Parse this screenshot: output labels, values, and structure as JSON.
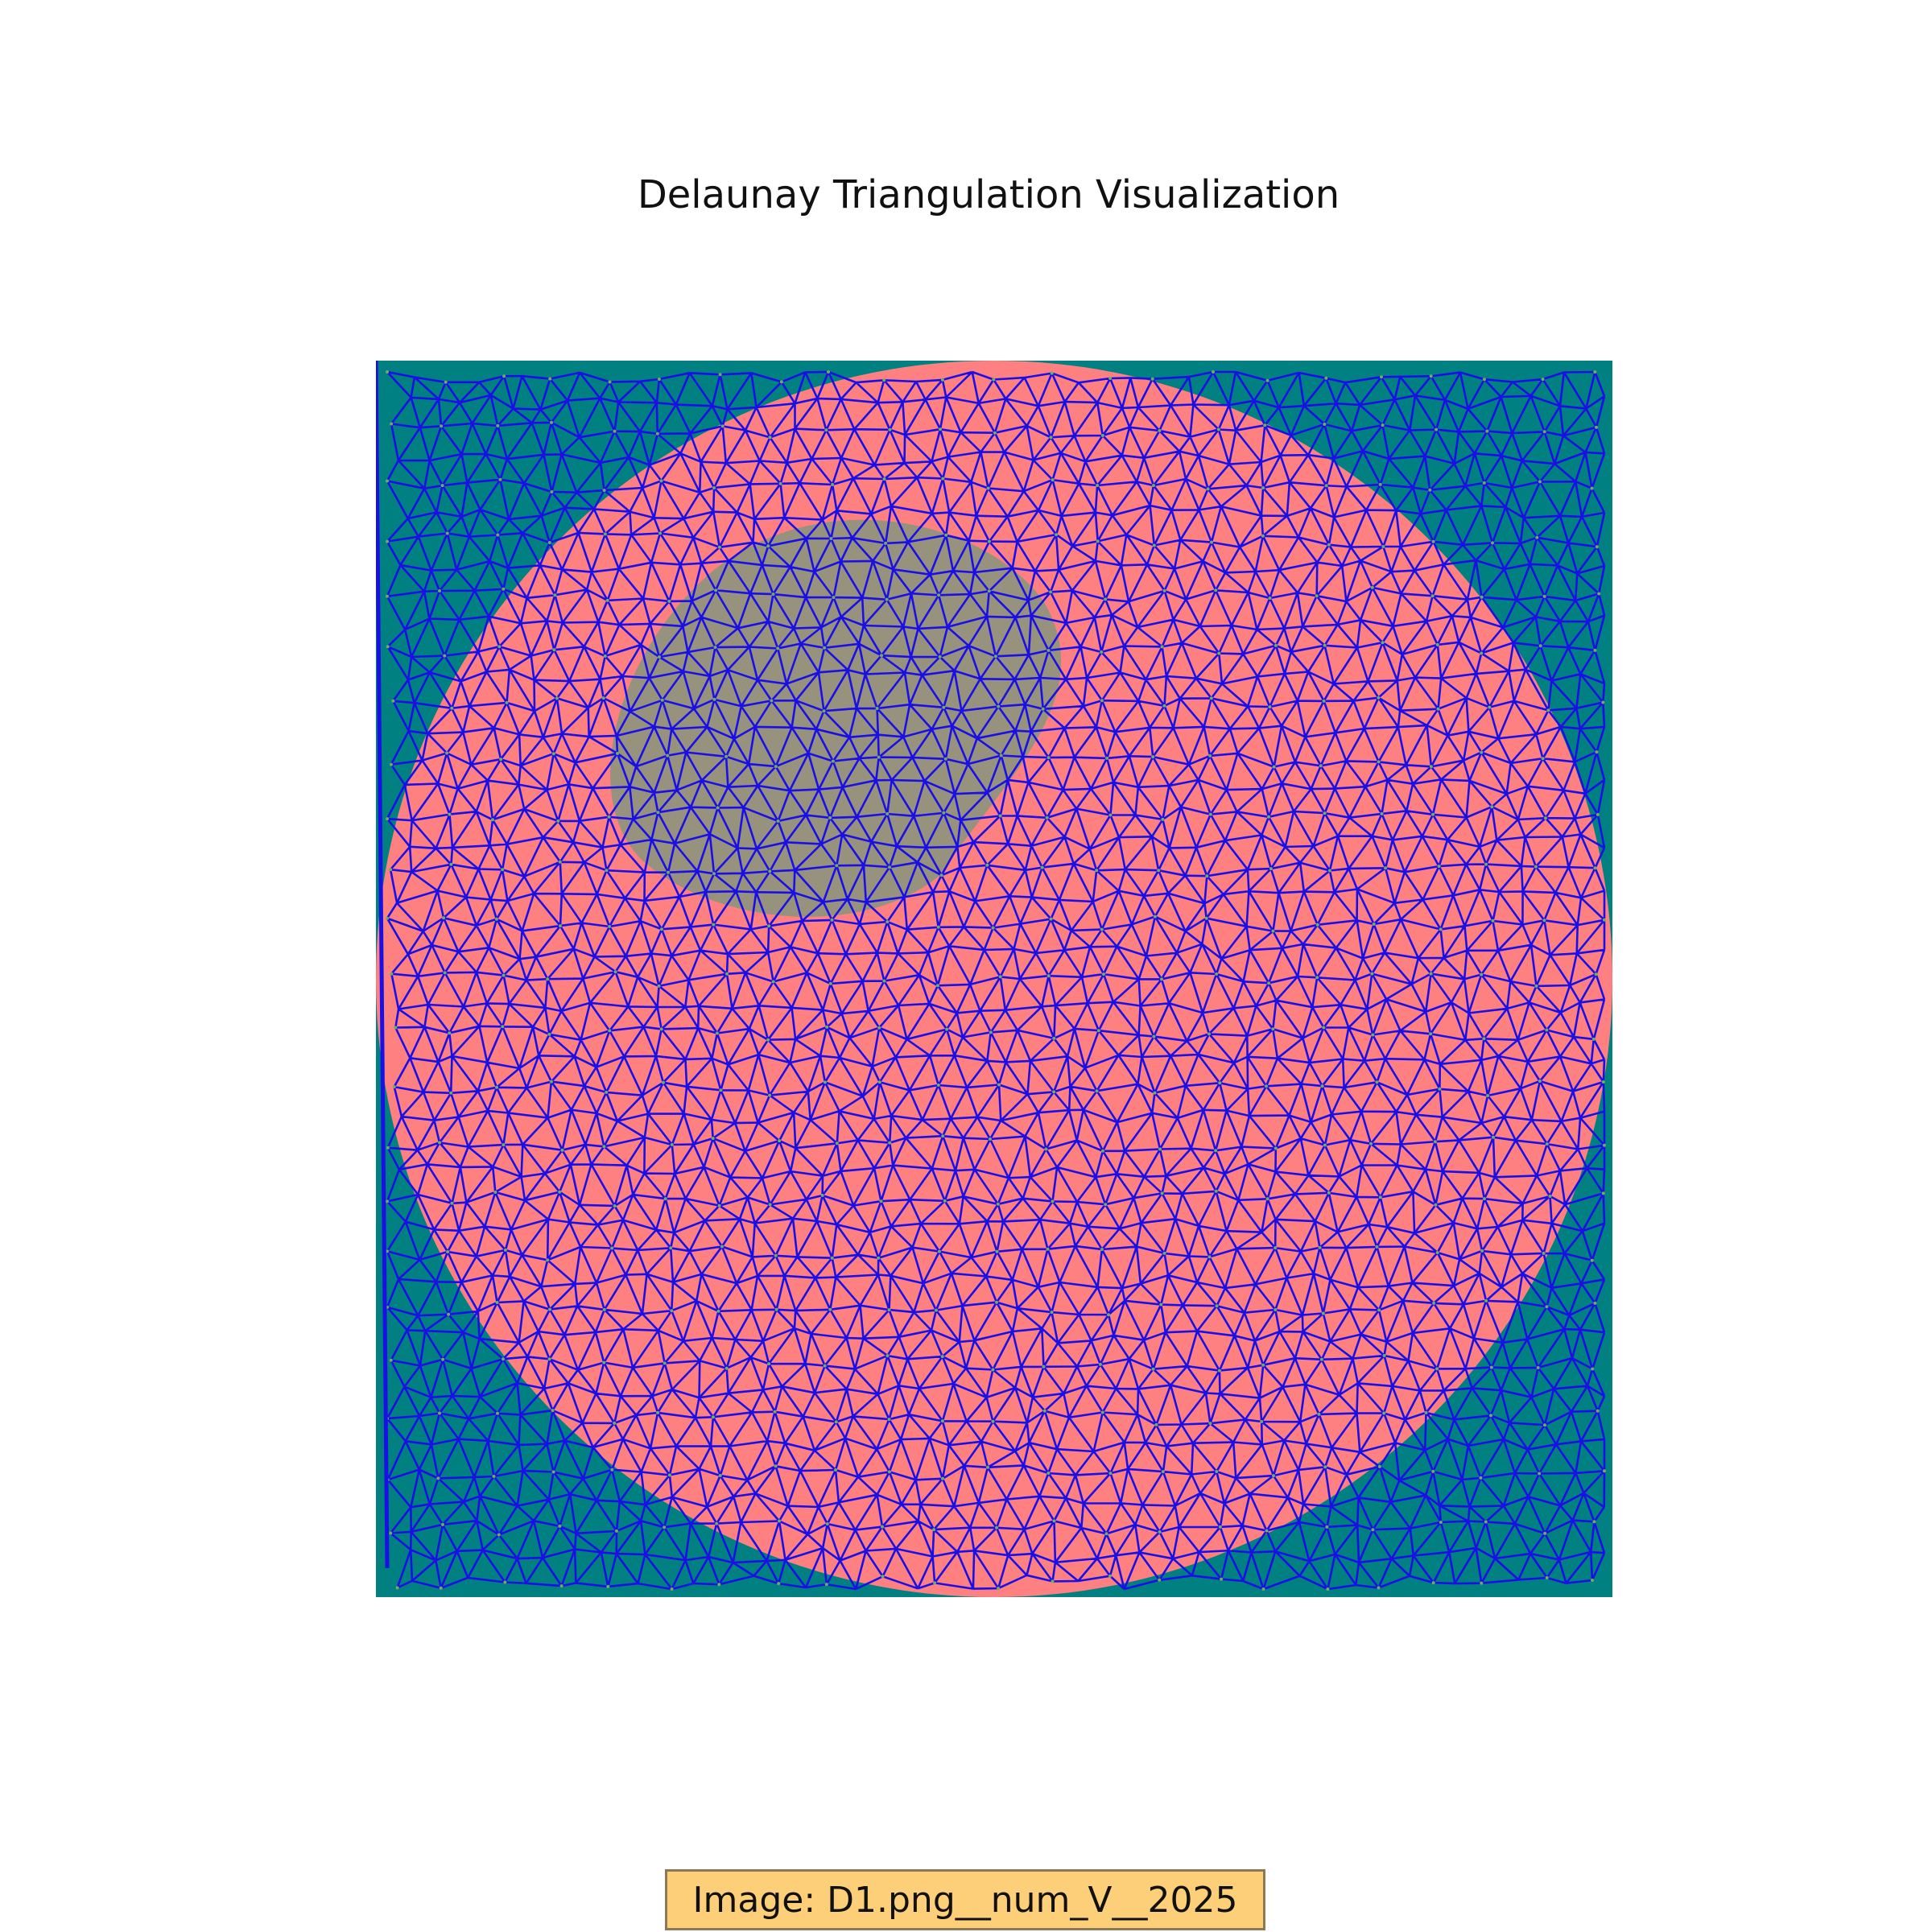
{
  "title": "Delaunay Triangulation Visualization",
  "caption": "Image: D1.png__num_V__2025",
  "figure": {
    "vertex_count": 2025,
    "colors": {
      "background_region": "#008080",
      "disc_region": "#ff8080",
      "inner_blob": "#3fa07a",
      "mesh_edges": "#1a10e6",
      "vertex_dots": "#6fae5a",
      "caption_fill": "#fecf79",
      "caption_border": "#8a7a55"
    }
  }
}
